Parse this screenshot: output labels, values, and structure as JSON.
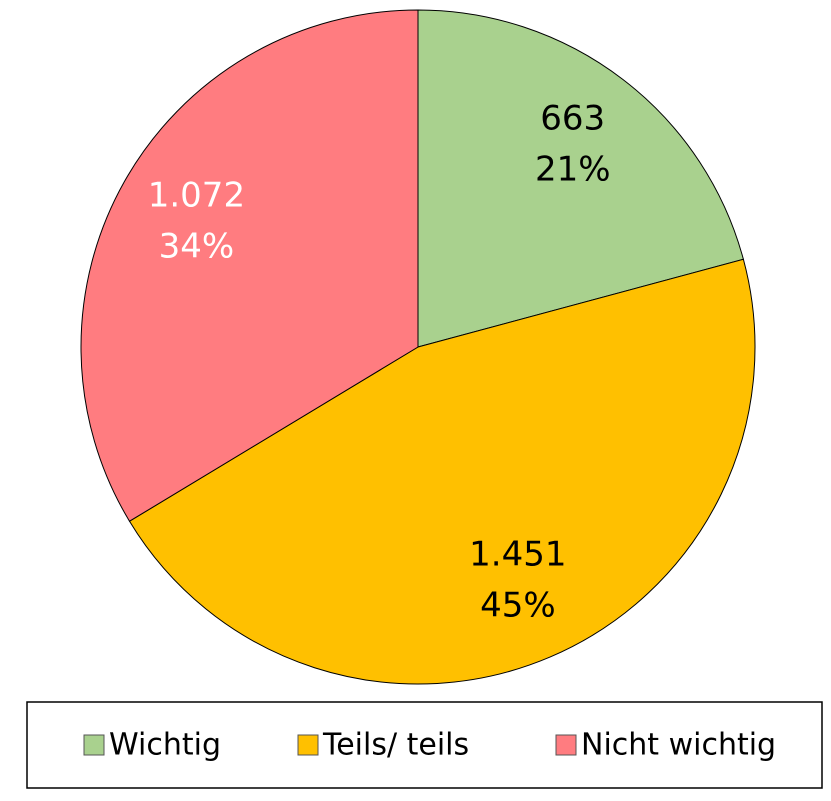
{
  "chart_data": {
    "type": "pie",
    "categories": [
      "Wichtig",
      "Teils/ teils",
      "Nicht wichtig"
    ],
    "values": [
      663,
      1451,
      1072
    ],
    "value_labels": [
      "663",
      "1.451",
      "1.072"
    ],
    "percentages": [
      21,
      45,
      34
    ],
    "percentage_labels": [
      "21%",
      "45%",
      "34%"
    ],
    "colors": [
      "#a9d18e",
      "#ffc000",
      "#ff7c80"
    ],
    "label_colors": [
      "#000000",
      "#000000",
      "#ffffff"
    ],
    "legend": "bottom"
  }
}
